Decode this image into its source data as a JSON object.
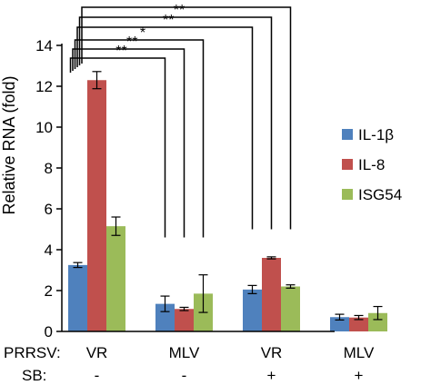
{
  "chart_data": {
    "type": "bar",
    "ylabel": "Relative RNA (fold)",
    "ylim": [
      0,
      14
    ],
    "yticks": [
      "0",
      "2",
      "4",
      "6",
      "8",
      "10",
      "12",
      "14"
    ],
    "grid": false,
    "legend_position": "right",
    "categories": [
      {
        "prrsv": "VR",
        "sb": "-"
      },
      {
        "prrsv": "MLV",
        "sb": "-"
      },
      {
        "prrsv": "VR",
        "sb": "+"
      },
      {
        "prrsv": "MLV",
        "sb": "+"
      }
    ],
    "row_labels": {
      "prrsv": "PRRSV:",
      "sb": "SB:"
    },
    "series": [
      {
        "name": "IL-1β",
        "color": "#4f81bd",
        "values": [
          3.25,
          1.35,
          2.05,
          0.7
        ],
        "errors": [
          0.12,
          0.38,
          0.2,
          0.14
        ]
      },
      {
        "name": "IL-8",
        "color": "#c0504d",
        "values": [
          12.3,
          1.1,
          3.6,
          0.68
        ],
        "errors": [
          0.42,
          0.08,
          0.05,
          0.1
        ]
      },
      {
        "name": "ISG54",
        "color": "#9bbb59",
        "values": [
          5.15,
          1.85,
          2.2,
          0.9
        ],
        "errors": [
          0.45,
          0.92,
          0.08,
          0.32
        ]
      }
    ],
    "significance": [
      {
        "from": [
          0,
          0
        ],
        "to": [
          1,
          0
        ],
        "label": "**"
      },
      {
        "from": [
          0,
          0
        ],
        "to": [
          1,
          1
        ],
        "label": "**"
      },
      {
        "from": [
          0,
          0
        ],
        "to": [
          1,
          2
        ],
        "label": "*"
      },
      {
        "from": [
          0,
          0
        ],
        "to": [
          2,
          0
        ],
        "label": "**"
      },
      {
        "from": [
          0,
          0
        ],
        "to": [
          2,
          1
        ],
        "label": "**"
      },
      {
        "from": [
          0,
          0
        ],
        "to": [
          2,
          2
        ],
        "label": "**"
      }
    ]
  }
}
